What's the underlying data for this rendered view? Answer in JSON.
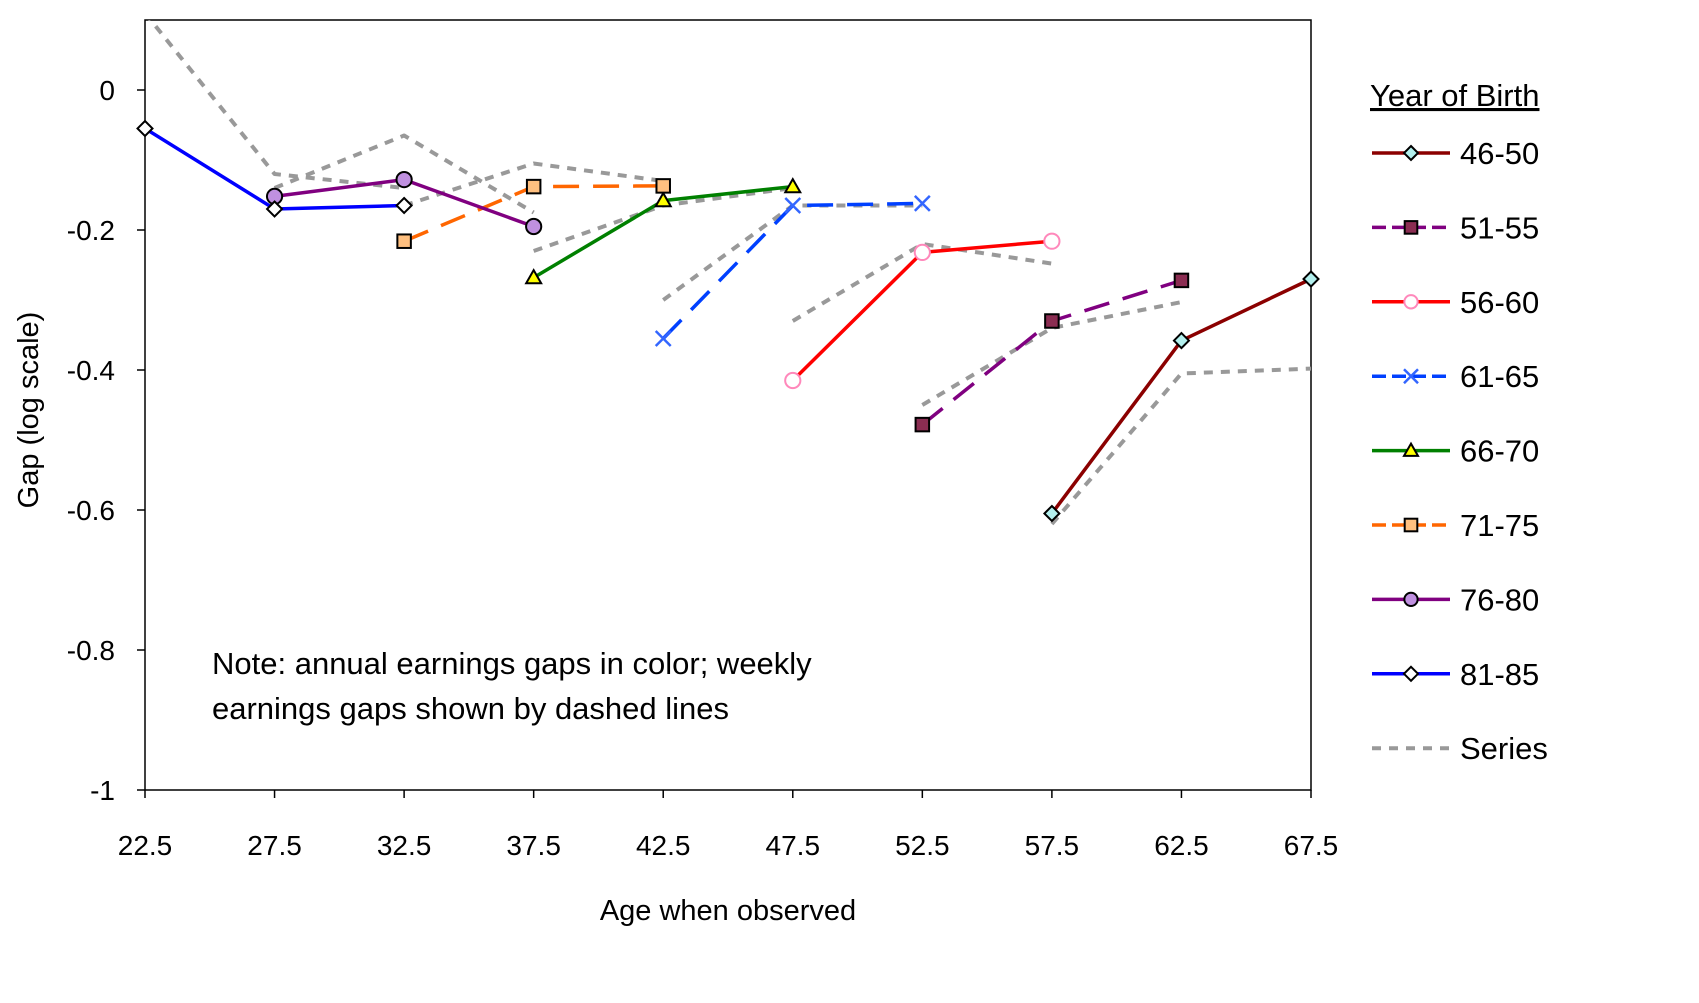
{
  "chart_data": {
    "type": "line",
    "xlabel": "Age when observed",
    "ylabel": "Gap (log scale)",
    "x_ticks": [
      "22.5",
      "27.5",
      "32.5",
      "37.5",
      "42.5",
      "47.5",
      "52.5",
      "57.5",
      "62.5",
      "67.5"
    ],
    "y_ticks": [
      {
        "value": 0,
        "label": "0"
      },
      {
        "value": -0.2,
        "label": "-0.2"
      },
      {
        "value": -0.4,
        "label": "-0.4"
      },
      {
        "value": -0.6,
        "label": "-0.6"
      },
      {
        "value": -0.8,
        "label": "-0.8"
      },
      {
        "value": -1,
        "label": "-1"
      }
    ],
    "xlim": [
      22.5,
      67.5
    ],
    "ylim": [
      -1,
      0.1
    ],
    "grid": false,
    "legend_title": "Year of Birth",
    "legend_position": "right",
    "note_lines": [
      "Note: annual earnings gaps in color; weekly",
      "earnings gaps shown by dashed lines"
    ],
    "series": [
      {
        "name": "46-50",
        "color": "#8b0000",
        "dashed": false,
        "marker": "diamond",
        "marker_fill": "#b3f0ee",
        "x": [
          57.5,
          62.5,
          67.5
        ],
        "y": [
          -0.605,
          -0.358,
          -0.27
        ]
      },
      {
        "name": "51-55",
        "color": "#800080",
        "dashed": true,
        "marker": "square",
        "marker_fill": "#8b2d52",
        "x": [
          52.5,
          57.5,
          62.5
        ],
        "y": [
          -0.478,
          -0.33,
          -0.272
        ]
      },
      {
        "name": "56-60",
        "color": "#ff0000",
        "dashed": false,
        "marker": "circle",
        "marker_fill": "#ffffff",
        "marker_stroke": "#ff88bb",
        "x": [
          47.5,
          52.5,
          57.5
        ],
        "y": [
          -0.415,
          -0.232,
          -0.216
        ]
      },
      {
        "name": "61-65",
        "color": "#0040ff",
        "dashed": true,
        "marker": "x",
        "marker_stroke": "#3366ff",
        "x": [
          42.5,
          47.5,
          52.5
        ],
        "y": [
          -0.355,
          -0.165,
          -0.162
        ]
      },
      {
        "name": "66-70",
        "color": "#008000",
        "dashed": false,
        "marker": "triangle",
        "marker_fill": "#ffff00",
        "x": [
          37.5,
          42.5,
          47.5
        ],
        "y": [
          -0.268,
          -0.158,
          -0.138
        ]
      },
      {
        "name": "71-75",
        "color": "#ff6600",
        "dashed": true,
        "marker": "square",
        "marker_fill": "#ffc080",
        "x": [
          32.5,
          37.5,
          42.5
        ],
        "y": [
          -0.216,
          -0.138,
          -0.137
        ]
      },
      {
        "name": "76-80",
        "color": "#800080",
        "dashed": false,
        "marker": "circle",
        "marker_fill": "#c090e0",
        "x": [
          27.5,
          32.5,
          37.5
        ],
        "y": [
          -0.152,
          -0.128,
          -0.195
        ]
      },
      {
        "name": "81-85",
        "color": "#0000ff",
        "dashed": false,
        "marker": "diamond",
        "marker_fill": "#ffffff",
        "x": [
          22.5,
          27.5,
          32.5
        ],
        "y": [
          -0.055,
          -0.17,
          -0.165
        ]
      },
      {
        "name": "Series",
        "color": "#999999",
        "dashed": true,
        "dotted": true,
        "marker": "none",
        "segments": [
          {
            "x": [
              22.5,
              27.5,
              32.5
            ],
            "y": [
              0.11,
              -0.12,
              -0.14
            ]
          },
          {
            "x": [
              27.5,
              32.5,
              37.5
            ],
            "y": [
              -0.14,
              -0.065,
              -0.175
            ]
          },
          {
            "x": [
              32.5,
              37.5,
              42.5
            ],
            "y": [
              -0.165,
              -0.105,
              -0.13
            ]
          },
          {
            "x": [
              37.5,
              42.5,
              47.5
            ],
            "y": [
              -0.23,
              -0.165,
              -0.14
            ]
          },
          {
            "x": [
              42.5,
              47.5,
              52.5
            ],
            "y": [
              -0.3,
              -0.165,
              -0.165
            ]
          },
          {
            "x": [
              47.5,
              52.5,
              57.5
            ],
            "y": [
              -0.33,
              -0.22,
              -0.248
            ]
          },
          {
            "x": [
              52.5,
              57.5,
              62.5
            ],
            "y": [
              -0.45,
              -0.34,
              -0.303
            ]
          },
          {
            "x": [
              57.5,
              62.5,
              67.5
            ],
            "y": [
              -0.62,
              -0.405,
              -0.398
            ]
          }
        ]
      }
    ]
  }
}
